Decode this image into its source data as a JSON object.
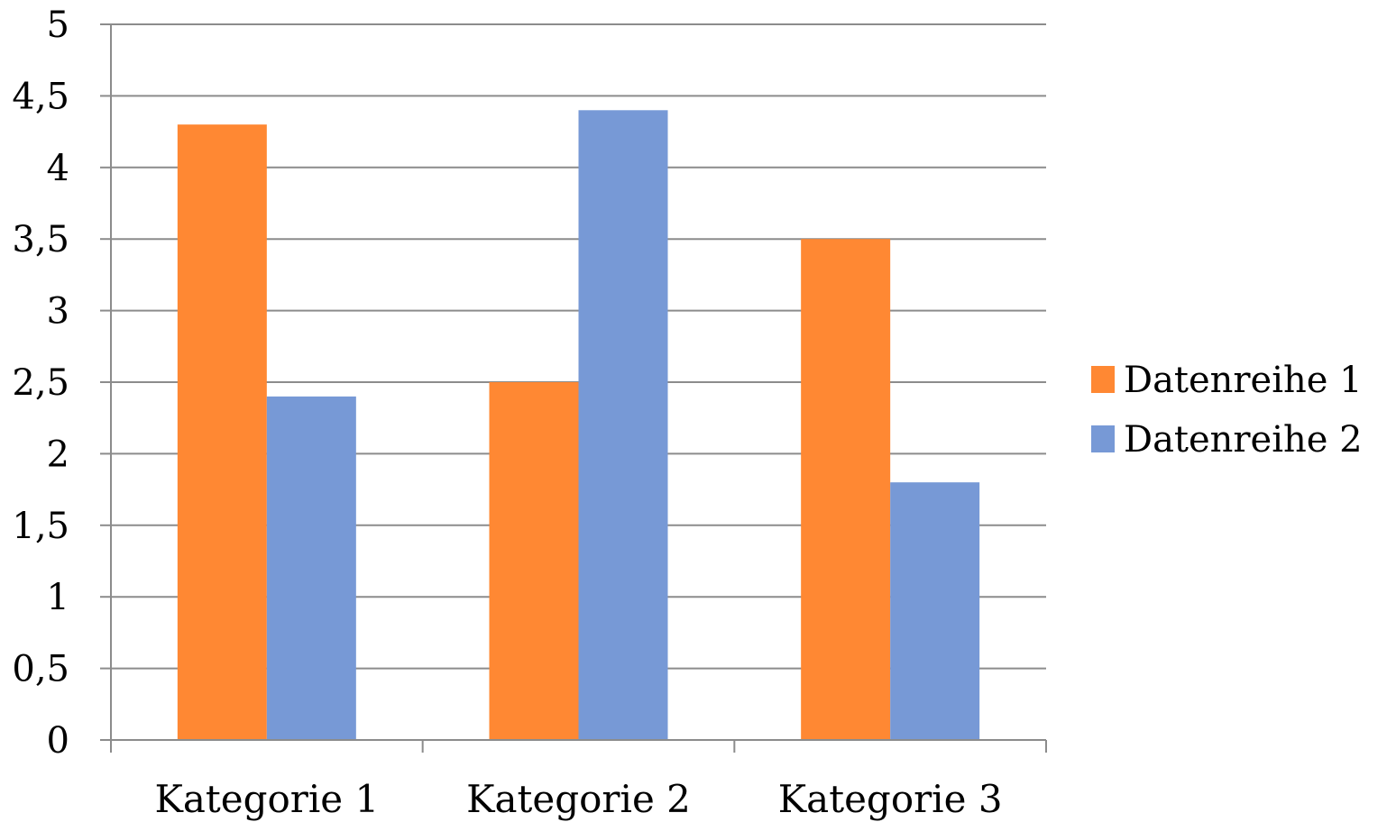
{
  "chart_data": {
    "type": "bar",
    "categories": [
      "Kategorie 1",
      "Kategorie 2",
      "Kategorie 3"
    ],
    "series": [
      {
        "name": "Datenreihe 1",
        "color": "#FF8833",
        "values": [
          4.3,
          2.5,
          3.5
        ]
      },
      {
        "name": "Datenreihe 2",
        "color": "#7799D6",
        "values": [
          2.4,
          4.4,
          1.8
        ]
      }
    ],
    "yticks": [
      "0",
      "0,5",
      "1",
      "1,5",
      "2",
      "2,5",
      "3",
      "3,5",
      "4",
      "4,5",
      "5"
    ],
    "ylim": [
      0,
      5
    ],
    "title": "",
    "xlabel": "",
    "ylabel": "",
    "grid": true,
    "legend_position": "right"
  }
}
